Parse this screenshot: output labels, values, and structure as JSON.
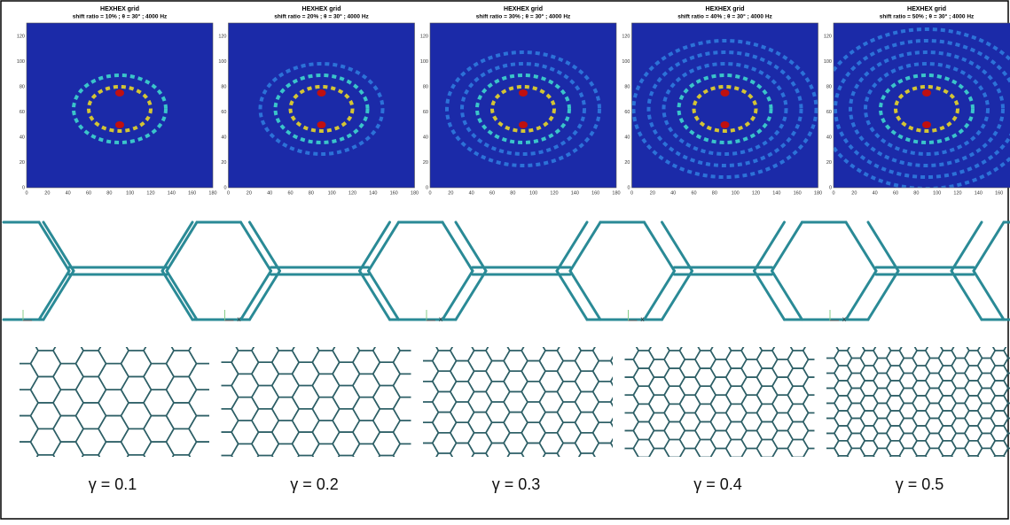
{
  "panels": [
    {
      "title": "HEXHEX grid",
      "subtitle": "shift ratio = 10%  ;  θ = 30° ; 4000 Hz",
      "gamma": "γ = 0.1"
    },
    {
      "title": "HEXHEX grid",
      "subtitle": "shift ratio = 20%  ;  θ = 30° ; 4000 Hz",
      "gamma": "γ = 0.2"
    },
    {
      "title": "HEXHEX grid",
      "subtitle": "shift ratio = 30%  ;  θ = 30° ; 4000 Hz",
      "gamma": "γ = 0.3"
    },
    {
      "title": "HEXHEX grid",
      "subtitle": "shift ratio = 40%  ;  θ = 30° ; 4000 Hz",
      "gamma": "γ = 0.4"
    },
    {
      "title": "HEXHEX grid",
      "subtitle": "shift ratio = 50%  ;  θ = 30° ; 4000 Hz",
      "gamma": "γ = 0.5"
    }
  ],
  "axes": {
    "xticks": [
      0,
      20,
      40,
      60,
      80,
      100,
      120,
      140,
      160,
      180
    ],
    "yticks": [
      0,
      20,
      40,
      60,
      80,
      100,
      120
    ]
  },
  "axis_letter": "x"
}
